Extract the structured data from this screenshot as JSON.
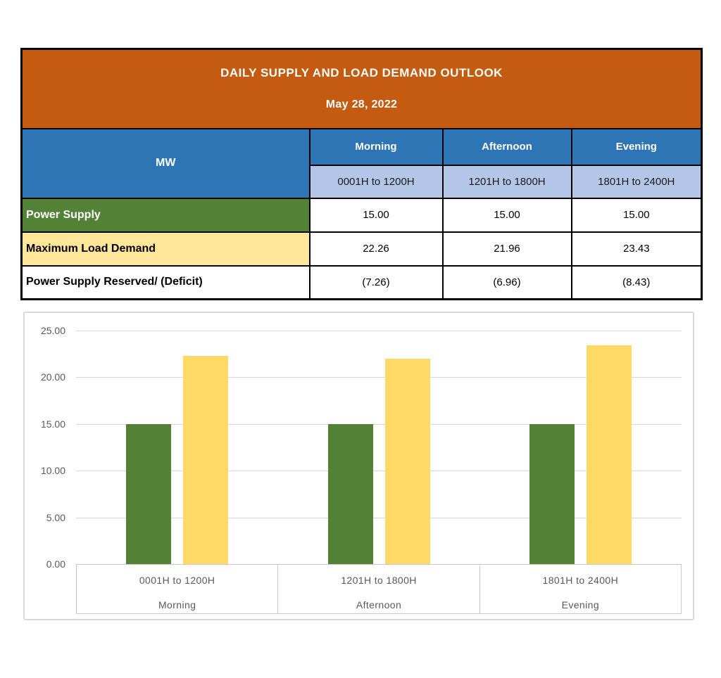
{
  "table": {
    "title": "DAILY SUPPLY AND LOAD DEMAND OUTLOOK",
    "date": "May 28, 2022",
    "unit_label": "MW",
    "columns": [
      {
        "period": "Morning",
        "hours": "0001H to 1200H"
      },
      {
        "period": "Afternoon",
        "hours": "1201H to 1800H"
      },
      {
        "period": "Evening",
        "hours": "1801H to 2400H"
      }
    ],
    "rows": [
      {
        "label": "Power Supply",
        "values": [
          "15.00",
          "15.00",
          "15.00"
        ]
      },
      {
        "label": "Maximum Load Demand",
        "values": [
          "22.26",
          "21.96",
          "23.43"
        ]
      },
      {
        "label": "Power Supply Reserved/ (Deficit)",
        "values": [
          "(7.26)",
          "(6.96)",
          "(8.43)"
        ]
      }
    ]
  },
  "chart_data": {
    "type": "bar",
    "title": "",
    "xlabel": "",
    "ylabel": "",
    "categories": [
      {
        "hours": "0001H to 1200H",
        "period": "Morning"
      },
      {
        "hours": "1201H to 1800H",
        "period": "Afternoon"
      },
      {
        "hours": "1801H to 2400H",
        "period": "Evening"
      }
    ],
    "series": [
      {
        "name": "Power Supply",
        "color": "#538135",
        "values": [
          15.0,
          15.0,
          15.0
        ]
      },
      {
        "name": "Maximum Load Demand",
        "color": "#FFD966",
        "values": [
          22.26,
          21.96,
          23.43
        ]
      }
    ],
    "ylim": [
      0,
      25
    ],
    "y_ticks": [
      0,
      5,
      10,
      15,
      20,
      25
    ],
    "y_tick_labels": [
      "0.00",
      "5.00",
      "10.00",
      "15.00",
      "20.00",
      "25.00"
    ],
    "grid": true,
    "legend_position": "none"
  },
  "colors": {
    "header_orange": "#C55A11",
    "header_blue": "#2E75B6",
    "subheader_light_blue": "#B4C6E7",
    "supply_green": "#538135",
    "demand_yellow_row": "#FFE699",
    "bar_green": "#538135",
    "bar_yellow": "#FFD966",
    "gridline": "#D9D9D9",
    "axis_text": "#595959",
    "table_border": "#000000"
  }
}
